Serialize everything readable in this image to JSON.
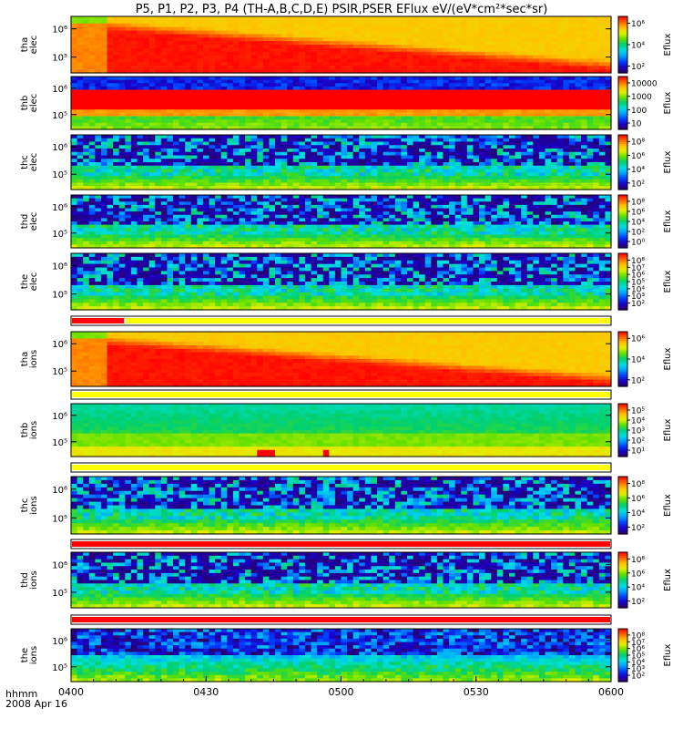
{
  "title": "P5, P1, P2, P3, P4 (TH-A,B,C,D,E) PSIR,PSER EFlux eV/(eV*cm²*sec*sr)",
  "footer": {
    "time_label": "hhmm",
    "date_label": "2008 Apr 16"
  },
  "colors": {
    "colormap": [
      "#2a0060",
      "#1a00c8",
      "#0040ff",
      "#00a0ff",
      "#00e0e0",
      "#00d070",
      "#60e000",
      "#e0f000",
      "#ffc000",
      "#ff6000",
      "#ff0000"
    ],
    "status_red": "#ff0000",
    "status_yellow": "#ffff00"
  },
  "chart_data": {
    "type": "heatmap",
    "title": "P5, P1, P2, P3, P4 (TH-A,B,C,D,E) PSIR,PSER EFlux eV/(eV*cm²*sec*sr)",
    "x_axis": {
      "ticks": [
        "0400",
        "0430",
        "0500",
        "0530",
        "0600"
      ],
      "range": [
        "0400",
        "0600"
      ]
    },
    "panels": [
      {
        "probe": "tha",
        "species": "elec",
        "y_ticks": [
          "10⁶",
          "10⁵"
        ],
        "color_ticks": [
          "10⁶",
          "10⁴",
          "10²"
        ],
        "color_label": "Eflux"
      },
      {
        "probe": "thb",
        "species": "elec",
        "y_ticks": [
          "10⁶",
          "10⁵"
        ],
        "color_ticks": [
          "10000",
          "1000",
          "100",
          "10"
        ],
        "color_label": "Eflux"
      },
      {
        "probe": "thc",
        "species": "elec",
        "y_ticks": [
          "10⁶",
          "10⁵"
        ],
        "color_ticks": [
          "10⁸",
          "10⁶",
          "10⁴",
          "10²"
        ],
        "color_label": "Eflux"
      },
      {
        "probe": "thd",
        "species": "elec",
        "y_ticks": [
          "10⁶",
          "10⁵"
        ],
        "color_ticks": [
          "10⁸",
          "10⁶",
          "10⁴",
          "10²",
          "10⁰"
        ],
        "color_label": "Eflux"
      },
      {
        "probe": "the",
        "species": "elec",
        "y_ticks": [
          "10⁶",
          "10⁵"
        ],
        "color_ticks": [
          "10⁸",
          "10⁷",
          "10⁶",
          "10⁵",
          "10⁴",
          "10³",
          "10²"
        ],
        "color_label": "Eflux"
      },
      {
        "probe": "tha",
        "species": "ions",
        "y_ticks": [
          "10⁶",
          "10⁵"
        ],
        "color_ticks": [
          "10⁶",
          "10⁴",
          "10²"
        ],
        "color_label": "Eflux"
      },
      {
        "probe": "thb",
        "species": "ions",
        "y_ticks": [
          "10⁶",
          "10⁵"
        ],
        "color_ticks": [
          "10⁵",
          "10⁴",
          "10³",
          "10²",
          "10¹"
        ],
        "color_label": "Eflux"
      },
      {
        "probe": "thc",
        "species": "ions",
        "y_ticks": [
          "10⁶",
          "10⁵"
        ],
        "color_ticks": [
          "10⁸",
          "10⁶",
          "10⁴",
          "10²"
        ],
        "color_label": "Eflux"
      },
      {
        "probe": "thd",
        "species": "ions",
        "y_ticks": [
          "10⁶",
          "10⁵"
        ],
        "color_ticks": [
          "10⁸",
          "10⁶",
          "10⁴",
          "10²"
        ],
        "color_label": "Eflux"
      },
      {
        "probe": "the",
        "species": "ions",
        "y_ticks": [
          "10⁶",
          "10⁵"
        ],
        "color_ticks": [
          "10⁸",
          "10⁷",
          "10⁶",
          "10⁵",
          "10⁴",
          "10³",
          "10²"
        ],
        "color_label": "Eflux"
      }
    ],
    "status_bars": [
      {
        "after_panel": 4,
        "segments": [
          {
            "from": "0400",
            "to": "0412",
            "color": "red"
          },
          {
            "from": "0412",
            "to": "0600",
            "color": "yellow"
          }
        ]
      },
      {
        "after_panel": 5,
        "segments": [
          {
            "from": "0400",
            "to": "0600",
            "color": "yellow"
          }
        ]
      },
      {
        "after_panel": 6,
        "segments": [
          {
            "from": "0400",
            "to": "0600",
            "color": "yellow"
          }
        ]
      },
      {
        "after_panel": 7,
        "segments": [
          {
            "from": "0400",
            "to": "0600",
            "color": "red"
          }
        ]
      },
      {
        "after_panel": 8,
        "segments": [
          {
            "from": "0400",
            "to": "0600",
            "color": "red"
          }
        ]
      }
    ]
  }
}
